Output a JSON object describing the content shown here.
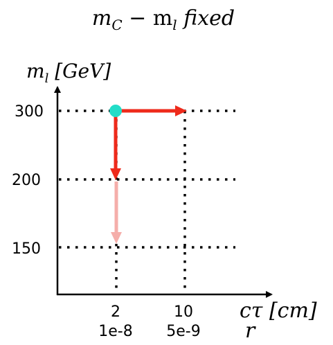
{
  "title": {
    "main": "m",
    "sub": "C",
    "mid": " − m",
    "sub2": "l",
    "tail": " fixed"
  },
  "y_axis": {
    "label_main": "m",
    "label_sub": "l",
    "label_unit": " [GeV]",
    "ticks": [
      "300",
      "200",
      "150"
    ]
  },
  "x_axis": {
    "label_main": "cτ",
    "label_unit": " [cm]",
    "label2": "r",
    "ticks_ctau": [
      "2",
      "10"
    ],
    "ticks_r": [
      "1e-8",
      "5e-9"
    ]
  },
  "colors": {
    "arrow": "#ee2a1b",
    "arrow_faded": "#f5aeaa",
    "marker": "#22ddc8",
    "grid": "#000000"
  },
  "marker": {
    "x": "2",
    "y": "300"
  },
  "arrows": [
    {
      "from": [
        "2",
        "300"
      ],
      "to": [
        "10",
        "300"
      ],
      "style": "solid"
    },
    {
      "from": [
        "2",
        "300"
      ],
      "to": [
        "2",
        "200"
      ],
      "style": "solid"
    },
    {
      "from": [
        "2",
        "200"
      ],
      "to": [
        "2",
        "150"
      ],
      "style": "faded"
    }
  ]
}
